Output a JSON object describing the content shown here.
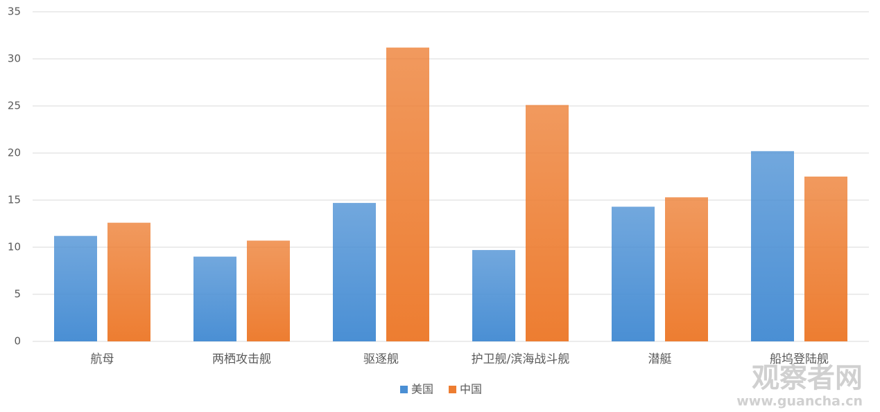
{
  "chart_data": {
    "type": "bar",
    "categories": [
      "航母",
      "两栖攻击舰",
      "驱逐舰",
      "护卫舰/滨海战斗舰",
      "潜艇",
      "船坞登陆舰"
    ],
    "series": [
      {
        "name": "美国",
        "color": "#4a8fd4",
        "values": [
          11.2,
          9.0,
          14.7,
          9.7,
          14.3,
          20.2
        ]
      },
      {
        "name": "中国",
        "color": "#ed7d31",
        "values": [
          12.6,
          10.7,
          31.2,
          25.1,
          15.3,
          17.5
        ]
      }
    ],
    "ylim": [
      0,
      35
    ],
    "yticks": [
      0,
      5,
      10,
      15,
      20,
      25,
      30,
      35
    ],
    "grid": true,
    "legend": "bottom",
    "watermark": {
      "title": "观察者网",
      "url": "www.guancha.cn"
    }
  }
}
